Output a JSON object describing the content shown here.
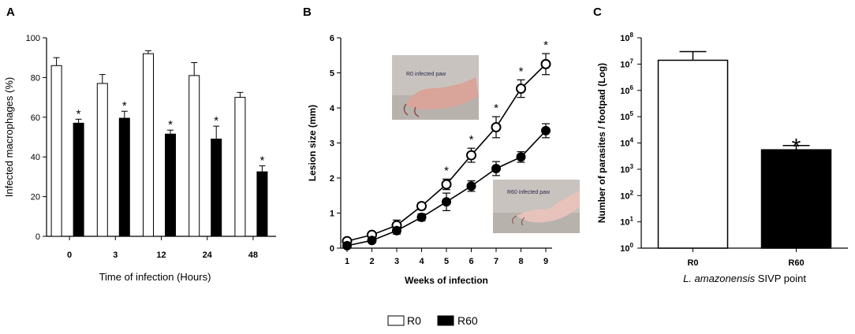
{
  "panels": {
    "a": {
      "letter": "A"
    },
    "b": {
      "letter": "B"
    },
    "c": {
      "letter": "C"
    }
  },
  "legend": {
    "items": [
      {
        "label": "R0",
        "color": "#ffffff"
      },
      {
        "label": "R60",
        "color": "#000000"
      }
    ]
  },
  "photos": {
    "r0_label": "R0 infected paw",
    "r60_label": "R60 infected paw"
  },
  "chart_data": [
    {
      "type": "bar",
      "panel": "A",
      "categories": [
        "0",
        "3",
        "12",
        "24",
        "48"
      ],
      "series": [
        {
          "name": "R0",
          "color": "#ffffff",
          "values": [
            86,
            77,
            92,
            81,
            70
          ],
          "errors": [
            4,
            4.5,
            1.5,
            6.5,
            2.5
          ]
        },
        {
          "name": "R60",
          "color": "#000000",
          "values": [
            57,
            59.5,
            51.5,
            49,
            32.5
          ],
          "errors": [
            2,
            3.5,
            2,
            6.5,
            3
          ]
        }
      ],
      "significance": [
        "*",
        "*",
        "*",
        "*",
        "*"
      ],
      "xlabel": "Time of infection (Hours)",
      "ylabel": "Infected macrophages (%)",
      "ylim": [
        0,
        100
      ],
      "yticks": [
        0,
        20,
        40,
        60,
        80,
        100
      ]
    },
    {
      "type": "line",
      "panel": "B",
      "x": [
        1,
        2,
        3,
        4,
        5,
        6,
        7,
        8,
        9
      ],
      "series": [
        {
          "name": "R0",
          "marker": "open-circle",
          "values": [
            0.2,
            0.38,
            0.65,
            1.2,
            1.82,
            2.65,
            3.45,
            4.55,
            5.25
          ],
          "errors": [
            0.05,
            0.05,
            0.15,
            0.1,
            0.15,
            0.2,
            0.3,
            0.25,
            0.3
          ]
        },
        {
          "name": "R60",
          "marker": "filled-circle",
          "values": [
            0.07,
            0.22,
            0.5,
            0.88,
            1.32,
            1.77,
            2.27,
            2.6,
            3.35
          ],
          "errors": [
            0.05,
            0.05,
            0.1,
            0.1,
            0.25,
            0.15,
            0.2,
            0.15,
            0.2
          ]
        }
      ],
      "significance_at_x": [
        5,
        6,
        7,
        8,
        9
      ],
      "significance_symbol": "*",
      "xlabel": "Weeks of infection",
      "ylabel": "Lesion size (mm)",
      "ylim": [
        0,
        6
      ],
      "yticks": [
        0,
        1,
        2,
        3,
        4,
        5,
        6
      ]
    },
    {
      "type": "bar",
      "panel": "C",
      "yscale": "log",
      "categories": [
        "R0",
        "R60"
      ],
      "values": [
        14000000,
        5500
      ],
      "errors_upper": [
        30000000,
        8000
      ],
      "colors": [
        "#ffffff",
        "#000000"
      ],
      "significance": [
        "",
        "*"
      ],
      "xlabel_italic": "L. amazonensis",
      "xlabel_rest": " SIVP point",
      "ylabel": "Number of parasites / footpad (Log)",
      "ylim_exponent": [
        0,
        8
      ],
      "ytick_base": "10",
      "ytick_exponents": [
        "0",
        "1",
        "2",
        "3",
        "4",
        "5",
        "6",
        "7",
        "8"
      ]
    }
  ]
}
